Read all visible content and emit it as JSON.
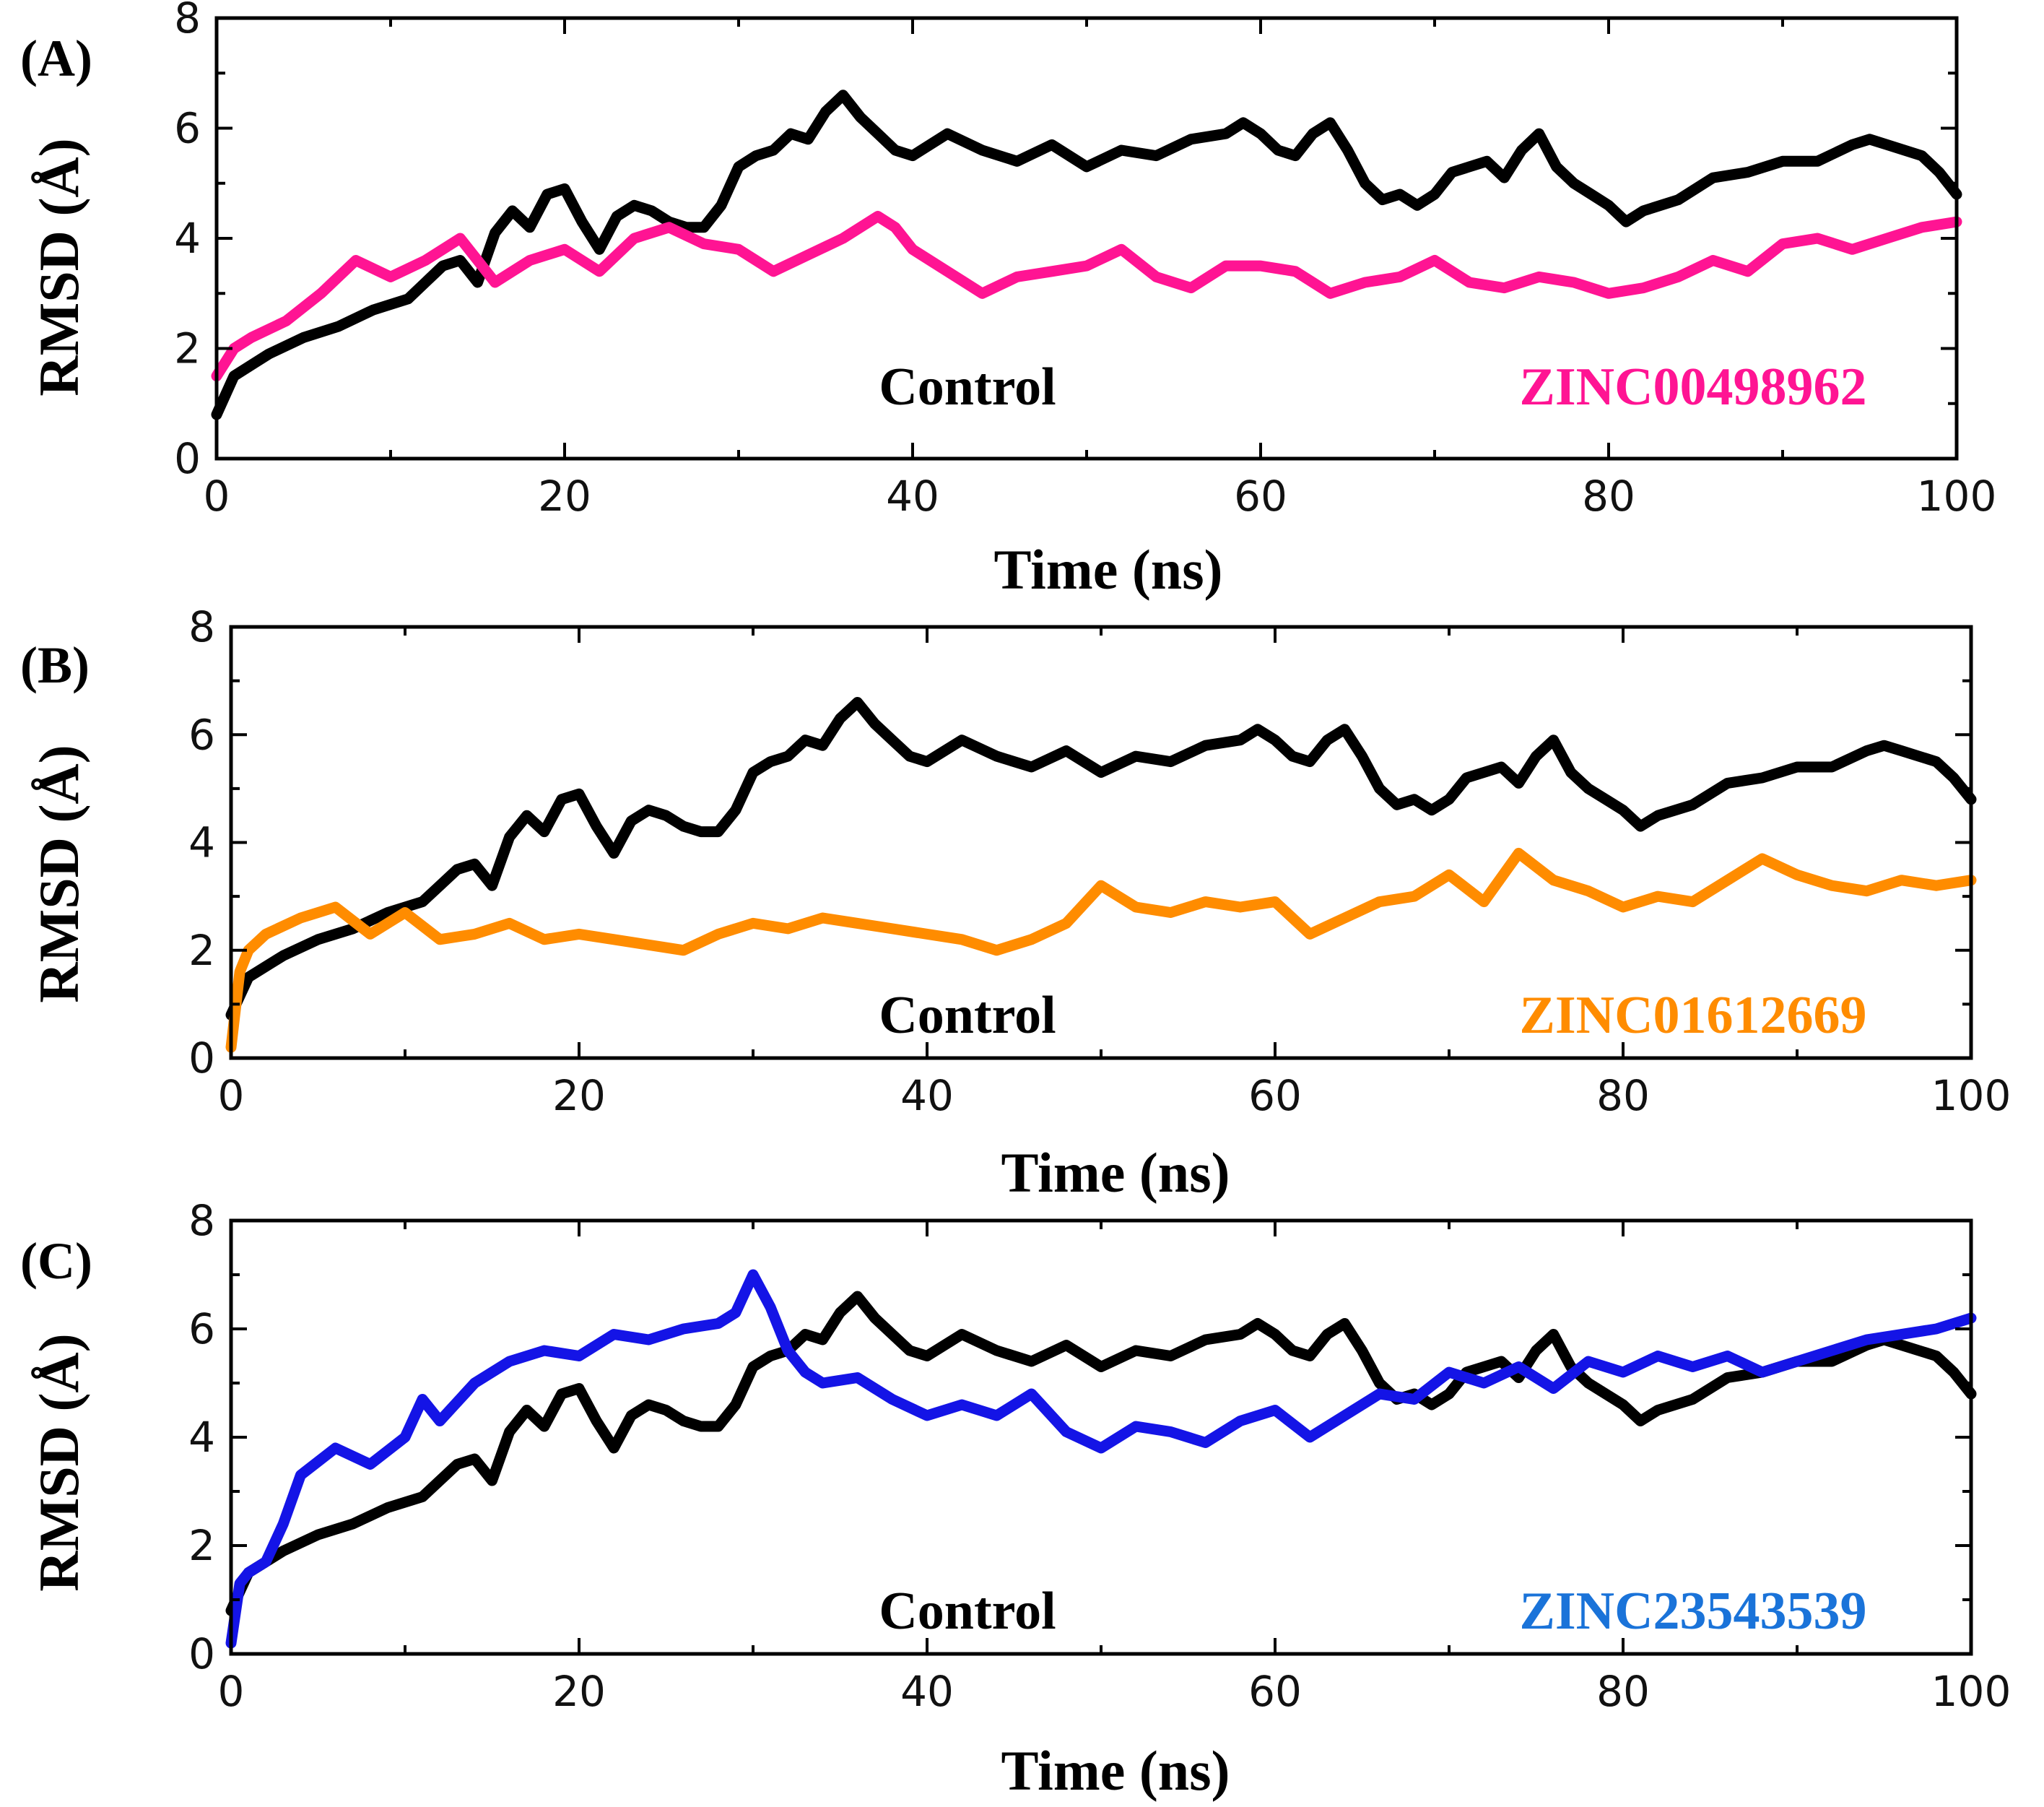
{
  "chart_data": [
    {
      "type": "line",
      "panel_label": "(A)",
      "xlabel": "Time (ns)",
      "ylabel": "RMSD (Å)",
      "xlim": [
        0,
        100
      ],
      "ylim": [
        0,
        8
      ],
      "xticks": [
        0,
        20,
        40,
        60,
        80,
        100
      ],
      "yticks": [
        0,
        2,
        4,
        6,
        8
      ],
      "series": [
        {
          "name": "Control",
          "color": "#000000",
          "x": [
            0,
            1,
            3,
            5,
            7,
            9,
            11,
            12,
            13,
            14,
            15,
            16,
            17,
            18,
            19,
            20,
            21,
            22,
            23,
            24,
            25,
            26,
            27,
            28,
            29,
            30,
            31,
            32,
            33,
            34,
            35,
            36,
            37,
            38,
            39,
            40,
            42,
            44,
            46,
            48,
            50,
            52,
            54,
            56,
            58,
            59,
            60,
            61,
            62,
            63,
            64,
            65,
            66,
            67,
            68,
            69,
            70,
            71,
            72,
            73,
            74,
            75,
            76,
            77,
            78,
            79,
            80,
            81,
            82,
            84,
            86,
            88,
            90,
            92,
            94,
            95,
            96,
            97,
            98,
            99,
            100
          ],
          "y": [
            0.8,
            1.5,
            1.9,
            2.2,
            2.4,
            2.7,
            2.9,
            3.2,
            3.5,
            3.6,
            3.2,
            4.1,
            4.5,
            4.2,
            4.8,
            4.9,
            4.3,
            3.8,
            4.4,
            4.6,
            4.5,
            4.3,
            4.2,
            4.2,
            4.6,
            5.3,
            5.5,
            5.6,
            5.9,
            5.8,
            6.3,
            6.6,
            6.2,
            5.9,
            5.6,
            5.5,
            5.9,
            5.6,
            5.4,
            5.7,
            5.3,
            5.6,
            5.5,
            5.8,
            5.9,
            6.1,
            5.9,
            5.6,
            5.5,
            5.9,
            6.1,
            5.6,
            5.0,
            4.7,
            4.8,
            4.6,
            4.8,
            5.2,
            5.3,
            5.4,
            5.1,
            5.6,
            5.9,
            5.3,
            5.0,
            4.8,
            4.6,
            4.3,
            4.5,
            4.7,
            5.1,
            5.2,
            5.4,
            5.4,
            5.7,
            5.8,
            5.7,
            5.6,
            5.5,
            5.2,
            4.8
          ]
        },
        {
          "name": "ZINC00498962",
          "color": "#ff1493",
          "x": [
            0,
            1,
            2,
            4,
            6,
            8,
            10,
            12,
            14,
            16,
            18,
            20,
            22,
            24,
            26,
            28,
            30,
            32,
            34,
            36,
            38,
            39,
            40,
            42,
            44,
            46,
            48,
            50,
            52,
            54,
            56,
            58,
            60,
            62,
            64,
            66,
            68,
            70,
            72,
            74,
            76,
            78,
            80,
            82,
            84,
            86,
            88,
            90,
            92,
            94,
            96,
            98,
            100
          ],
          "y": [
            1.5,
            2.0,
            2.2,
            2.5,
            3.0,
            3.6,
            3.3,
            3.6,
            4.0,
            3.2,
            3.6,
            3.8,
            3.4,
            4.0,
            4.2,
            3.9,
            3.8,
            3.4,
            3.7,
            4.0,
            4.4,
            4.2,
            3.8,
            3.4,
            3.0,
            3.3,
            3.4,
            3.5,
            3.8,
            3.3,
            3.1,
            3.5,
            3.5,
            3.4,
            3.0,
            3.2,
            3.3,
            3.6,
            3.2,
            3.1,
            3.3,
            3.2,
            3.0,
            3.1,
            3.3,
            3.6,
            3.4,
            3.9,
            4.0,
            3.8,
            4.0,
            4.2,
            4.3
          ]
        }
      ],
      "annotations": [
        {
          "text": "Control",
          "color": "#000000",
          "at": [
            43,
            1.0
          ]
        },
        {
          "text": "ZINC00498962",
          "color": "#ff1493",
          "at": [
            83,
            1.0
          ]
        }
      ]
    },
    {
      "type": "line",
      "panel_label": "(B)",
      "xlabel": "Time (ns)",
      "ylabel": "RMSD (Å)",
      "xlim": [
        0,
        100
      ],
      "ylim": [
        0,
        8
      ],
      "xticks": [
        0,
        20,
        40,
        60,
        80,
        100
      ],
      "yticks": [
        0,
        2,
        4,
        6,
        8
      ],
      "series": [
        {
          "name": "Control",
          "color": "#000000",
          "x": [
            0,
            1,
            3,
            5,
            7,
            9,
            11,
            12,
            13,
            14,
            15,
            16,
            17,
            18,
            19,
            20,
            21,
            22,
            23,
            24,
            25,
            26,
            27,
            28,
            29,
            30,
            31,
            32,
            33,
            34,
            35,
            36,
            37,
            38,
            39,
            40,
            42,
            44,
            46,
            48,
            50,
            52,
            54,
            56,
            58,
            59,
            60,
            61,
            62,
            63,
            64,
            65,
            66,
            67,
            68,
            69,
            70,
            71,
            72,
            73,
            74,
            75,
            76,
            77,
            78,
            79,
            80,
            81,
            82,
            84,
            86,
            88,
            90,
            92,
            94,
            95,
            96,
            97,
            98,
            99,
            100
          ],
          "y": [
            0.8,
            1.5,
            1.9,
            2.2,
            2.4,
            2.7,
            2.9,
            3.2,
            3.5,
            3.6,
            3.2,
            4.1,
            4.5,
            4.2,
            4.8,
            4.9,
            4.3,
            3.8,
            4.4,
            4.6,
            4.5,
            4.3,
            4.2,
            4.2,
            4.6,
            5.3,
            5.5,
            5.6,
            5.9,
            5.8,
            6.3,
            6.6,
            6.2,
            5.9,
            5.6,
            5.5,
            5.9,
            5.6,
            5.4,
            5.7,
            5.3,
            5.6,
            5.5,
            5.8,
            5.9,
            6.1,
            5.9,
            5.6,
            5.5,
            5.9,
            6.1,
            5.6,
            5.0,
            4.7,
            4.8,
            4.6,
            4.8,
            5.2,
            5.3,
            5.4,
            5.1,
            5.6,
            5.9,
            5.3,
            5.0,
            4.8,
            4.6,
            4.3,
            4.5,
            4.7,
            5.1,
            5.2,
            5.4,
            5.4,
            5.7,
            5.8,
            5.7,
            5.6,
            5.5,
            5.2,
            4.8
          ]
        },
        {
          "name": "ZINC01612669",
          "color": "#ff8c00",
          "x": [
            0,
            0.5,
            1,
            2,
            4,
            6,
            8,
            10,
            12,
            14,
            16,
            18,
            20,
            22,
            24,
            26,
            28,
            30,
            32,
            34,
            36,
            38,
            40,
            42,
            44,
            46,
            48,
            50,
            52,
            54,
            56,
            58,
            60,
            62,
            64,
            66,
            68,
            70,
            72,
            74,
            76,
            78,
            80,
            82,
            84,
            86,
            88,
            90,
            92,
            94,
            96,
            98,
            100
          ],
          "y": [
            0.2,
            1.6,
            2.0,
            2.3,
            2.6,
            2.8,
            2.3,
            2.7,
            2.2,
            2.3,
            2.5,
            2.2,
            2.3,
            2.2,
            2.1,
            2.0,
            2.3,
            2.5,
            2.4,
            2.6,
            2.5,
            2.4,
            2.3,
            2.2,
            2.0,
            2.2,
            2.5,
            3.2,
            2.8,
            2.7,
            2.9,
            2.8,
            2.9,
            2.3,
            2.6,
            2.9,
            3.0,
            3.4,
            2.9,
            3.8,
            3.3,
            3.1,
            2.8,
            3.0,
            2.9,
            3.3,
            3.7,
            3.4,
            3.2,
            3.1,
            3.3,
            3.2,
            3.3
          ]
        }
      ],
      "annotations": [
        {
          "text": "Control",
          "color": "#000000",
          "at": [
            43,
            1.0
          ]
        },
        {
          "text": "ZINC01612669",
          "color": "#ff8c00",
          "at": [
            83,
            1.0
          ]
        }
      ]
    },
    {
      "type": "line",
      "panel_label": "(C)",
      "xlabel": "Time (ns)",
      "ylabel": "RMSD (Å)",
      "xlim": [
        0,
        100
      ],
      "ylim": [
        0,
        8
      ],
      "xticks": [
        0,
        20,
        40,
        60,
        80,
        100
      ],
      "yticks": [
        0,
        2,
        4,
        6,
        8
      ],
      "series": [
        {
          "name": "Control",
          "color": "#000000",
          "x": [
            0,
            1,
            3,
            5,
            7,
            9,
            11,
            12,
            13,
            14,
            15,
            16,
            17,
            18,
            19,
            20,
            21,
            22,
            23,
            24,
            25,
            26,
            27,
            28,
            29,
            30,
            31,
            32,
            33,
            34,
            35,
            36,
            37,
            38,
            39,
            40,
            42,
            44,
            46,
            48,
            50,
            52,
            54,
            56,
            58,
            59,
            60,
            61,
            62,
            63,
            64,
            65,
            66,
            67,
            68,
            69,
            70,
            71,
            72,
            73,
            74,
            75,
            76,
            77,
            78,
            79,
            80,
            81,
            82,
            84,
            86,
            88,
            90,
            92,
            94,
            95,
            96,
            97,
            98,
            99,
            100
          ],
          "y": [
            0.8,
            1.5,
            1.9,
            2.2,
            2.4,
            2.7,
            2.9,
            3.2,
            3.5,
            3.6,
            3.2,
            4.1,
            4.5,
            4.2,
            4.8,
            4.9,
            4.3,
            3.8,
            4.4,
            4.6,
            4.5,
            4.3,
            4.2,
            4.2,
            4.6,
            5.3,
            5.5,
            5.6,
            5.9,
            5.8,
            6.3,
            6.6,
            6.2,
            5.9,
            5.6,
            5.5,
            5.9,
            5.6,
            5.4,
            5.7,
            5.3,
            5.6,
            5.5,
            5.8,
            5.9,
            6.1,
            5.9,
            5.6,
            5.5,
            5.9,
            6.1,
            5.6,
            5.0,
            4.7,
            4.8,
            4.6,
            4.8,
            5.2,
            5.3,
            5.4,
            5.1,
            5.6,
            5.9,
            5.3,
            5.0,
            4.8,
            4.6,
            4.3,
            4.5,
            4.7,
            5.1,
            5.2,
            5.4,
            5.4,
            5.7,
            5.8,
            5.7,
            5.6,
            5.5,
            5.2,
            4.8
          ]
        },
        {
          "name": "ZINC23543539",
          "color": "#1414e6",
          "x": [
            0,
            0.5,
            1,
            2,
            3,
            4,
            6,
            8,
            10,
            11,
            12,
            14,
            16,
            18,
            20,
            22,
            24,
            26,
            28,
            29,
            30,
            31,
            32,
            33,
            34,
            36,
            38,
            40,
            42,
            44,
            46,
            48,
            50,
            52,
            54,
            56,
            58,
            60,
            62,
            64,
            66,
            68,
            70,
            72,
            74,
            76,
            78,
            80,
            82,
            84,
            86,
            88,
            90,
            92,
            94,
            96,
            98,
            100
          ],
          "y": [
            0.2,
            1.3,
            1.5,
            1.7,
            2.4,
            3.3,
            3.8,
            3.5,
            4.0,
            4.7,
            4.3,
            5.0,
            5.4,
            5.6,
            5.5,
            5.9,
            5.8,
            6.0,
            6.1,
            6.3,
            7.0,
            6.4,
            5.6,
            5.2,
            5.0,
            5.1,
            4.7,
            4.4,
            4.6,
            4.4,
            4.8,
            4.1,
            3.8,
            4.2,
            4.1,
            3.9,
            4.3,
            4.5,
            4.0,
            4.4,
            4.8,
            4.7,
            5.2,
            5.0,
            5.3,
            4.9,
            5.4,
            5.2,
            5.5,
            5.3,
            5.5,
            5.2,
            5.4,
            5.6,
            5.8,
            5.9,
            6.0,
            6.2
          ]
        }
      ],
      "annotations": [
        {
          "text": "Control",
          "color": "#000000",
          "at": [
            43,
            1.0
          ]
        },
        {
          "text": "ZINC23543539",
          "color": "#1a73d9",
          "at": [
            83,
            1.0
          ]
        }
      ]
    }
  ]
}
